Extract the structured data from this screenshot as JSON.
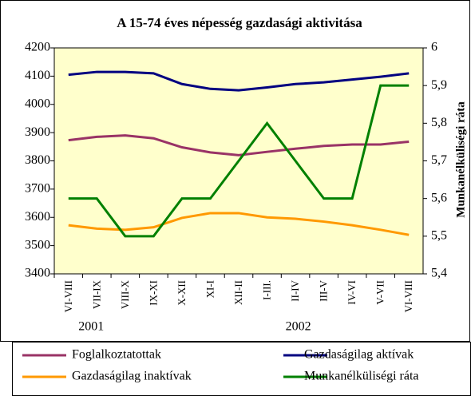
{
  "chart_data": {
    "type": "line",
    "title": "A 15-74 éves népesség gazdasági aktivitása",
    "y2_label": "Munkanélküliségi ráta",
    "categories": [
      "VI-VIII",
      "VII-IX",
      "VIII-X",
      "IX-XI",
      "X-XII",
      "XI-I",
      "XII-II",
      "I-III.",
      "II-IV",
      "III-V",
      "IV-VI",
      "V-VII",
      "VI-VIII"
    ],
    "year_labels": [
      "2001",
      "2002"
    ],
    "series": [
      {
        "name": "Foglalkoztatottak",
        "color": "#993366",
        "values": [
          3873,
          3885,
          3890,
          3880,
          3848,
          3830,
          3820,
          3832,
          3843,
          3853,
          3858,
          3858,
          3868
        ]
      },
      {
        "name": "Gazdaságilag aktívak",
        "color": "#000080",
        "values": [
          4105,
          4115,
          4115,
          4110,
          4072,
          4055,
          4050,
          4060,
          4072,
          4078,
          4088,
          4098,
          4110
        ]
      },
      {
        "name": "Gazdaságilag inaktívak",
        "color": "#FF9900",
        "values": [
          3572,
          3560,
          3556,
          3565,
          3598,
          3615,
          3615,
          3600,
          3595,
          3585,
          3572,
          3556,
          3538
        ]
      },
      {
        "name": "Munkanélküliségi ráta",
        "color": "#008000",
        "axis": "y2",
        "values": [
          5.6,
          5.6,
          5.5,
          5.5,
          5.6,
          5.6,
          5.7,
          5.8,
          5.7,
          5.6,
          5.6,
          5.9,
          5.9
        ]
      }
    ],
    "ylim": [
      3400,
      4200
    ],
    "yticks": [
      3400,
      3500,
      3600,
      3700,
      3800,
      3900,
      4000,
      4100,
      4200
    ],
    "y2lim": [
      5.4,
      6
    ],
    "y2ticks": [
      {
        "value": 5.4,
        "label": "5,4"
      },
      {
        "value": 5.5,
        "label": "5,5"
      },
      {
        "value": 5.6,
        "label": "5,6"
      },
      {
        "value": 5.7,
        "label": "5,7"
      },
      {
        "value": 5.8,
        "label": "5,8"
      },
      {
        "value": 5.9,
        "label": "5,9"
      },
      6
    ],
    "grid": false
  }
}
